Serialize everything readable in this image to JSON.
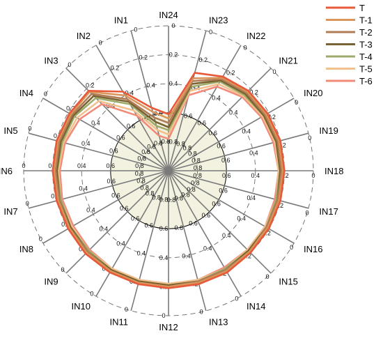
{
  "chart_data": {
    "type": "radar",
    "axes": [
      "IN1",
      "IN2",
      "IN3",
      "IN4",
      "IN5",
      "IN6",
      "IN7",
      "IN8",
      "IN9",
      "IN10",
      "IN11",
      "IN12",
      "IN13",
      "IN14",
      "IN15",
      "IN16",
      "IN17",
      "IN18",
      "IN19",
      "IN20",
      "IN21",
      "IN22",
      "IN23",
      "IN24"
    ],
    "axis_order_clockwise_from_top": [
      "IN24",
      "IN23",
      "IN22",
      "IN21",
      "IN20",
      "IN19",
      "IN18",
      "IN17",
      "IN16",
      "IN15",
      "IN14",
      "IN13",
      "IN12",
      "IN11",
      "IN10",
      "IN9",
      "IN8",
      "IN7",
      "IN6",
      "IN5",
      "IN4",
      "IN3",
      "IN2",
      "IN1"
    ],
    "radial_ticks": [
      "0",
      "0.2",
      "0.4",
      "0.6",
      "0.8"
    ],
    "radial_range": [
      0,
      1
    ],
    "radial_direction": "inverted (0 at outer edge, 1 at center)",
    "threshold_value": 0.6,
    "threshold_fill": "#f3f1df",
    "grid": true,
    "legend_position": "top-right",
    "series": [
      {
        "name": "T",
        "color": "#e8593a",
        "values_clockwise_from_top": [
          0.61,
          0.3,
          0.25,
          0.22,
          0.21,
          0.2,
          0.2,
          0.2,
          0.2,
          0.2,
          0.19,
          0.19,
          0.19,
          0.19,
          0.19,
          0.19,
          0.2,
          0.2,
          0.2,
          0.2,
          0.21,
          0.22,
          0.37,
          0.55
        ]
      },
      {
        "name": "T-1",
        "color": "#d9955a",
        "values_clockwise_from_top": [
          0.64,
          0.34,
          0.26,
          0.23,
          0.22,
          0.21,
          0.21,
          0.21,
          0.21,
          0.21,
          0.2,
          0.2,
          0.2,
          0.2,
          0.2,
          0.2,
          0.21,
          0.21,
          0.21,
          0.21,
          0.22,
          0.23,
          0.4,
          0.58
        ]
      },
      {
        "name": "T-2",
        "color": "#b07c55",
        "values_clockwise_from_top": [
          0.67,
          0.36,
          0.27,
          0.24,
          0.23,
          0.22,
          0.22,
          0.22,
          0.22,
          0.21,
          0.21,
          0.21,
          0.2,
          0.2,
          0.2,
          0.21,
          0.21,
          0.22,
          0.22,
          0.22,
          0.23,
          0.25,
          0.43,
          0.62
        ]
      },
      {
        "name": "T-3",
        "color": "#7a6332",
        "values_clockwise_from_top": [
          0.7,
          0.38,
          0.28,
          0.25,
          0.24,
          0.23,
          0.23,
          0.22,
          0.22,
          0.22,
          0.21,
          0.21,
          0.21,
          0.21,
          0.21,
          0.21,
          0.22,
          0.22,
          0.23,
          0.23,
          0.24,
          0.27,
          0.45,
          0.65
        ]
      },
      {
        "name": "T-4",
        "color": "#9caa6a",
        "values_clockwise_from_top": [
          0.72,
          0.4,
          0.29,
          0.26,
          0.24,
          0.23,
          0.23,
          0.23,
          0.22,
          0.22,
          0.22,
          0.21,
          0.21,
          0.21,
          0.21,
          0.22,
          0.22,
          0.23,
          0.23,
          0.24,
          0.25,
          0.29,
          0.47,
          0.68
        ]
      },
      {
        "name": "T-5",
        "color": "#f2c08c",
        "values_clockwise_from_top": [
          0.75,
          0.43,
          0.31,
          0.27,
          0.25,
          0.24,
          0.24,
          0.23,
          0.23,
          0.23,
          0.22,
          0.22,
          0.22,
          0.22,
          0.22,
          0.22,
          0.23,
          0.23,
          0.24,
          0.25,
          0.27,
          0.32,
          0.52,
          0.71
        ]
      },
      {
        "name": "T-6",
        "color": "#f28a7a",
        "values_clockwise_from_top": [
          0.78,
          0.46,
          0.33,
          0.28,
          0.26,
          0.25,
          0.24,
          0.24,
          0.23,
          0.23,
          0.23,
          0.22,
          0.22,
          0.22,
          0.22,
          0.23,
          0.24,
          0.24,
          0.25,
          0.26,
          0.29,
          0.35,
          0.56,
          0.75
        ]
      }
    ]
  }
}
